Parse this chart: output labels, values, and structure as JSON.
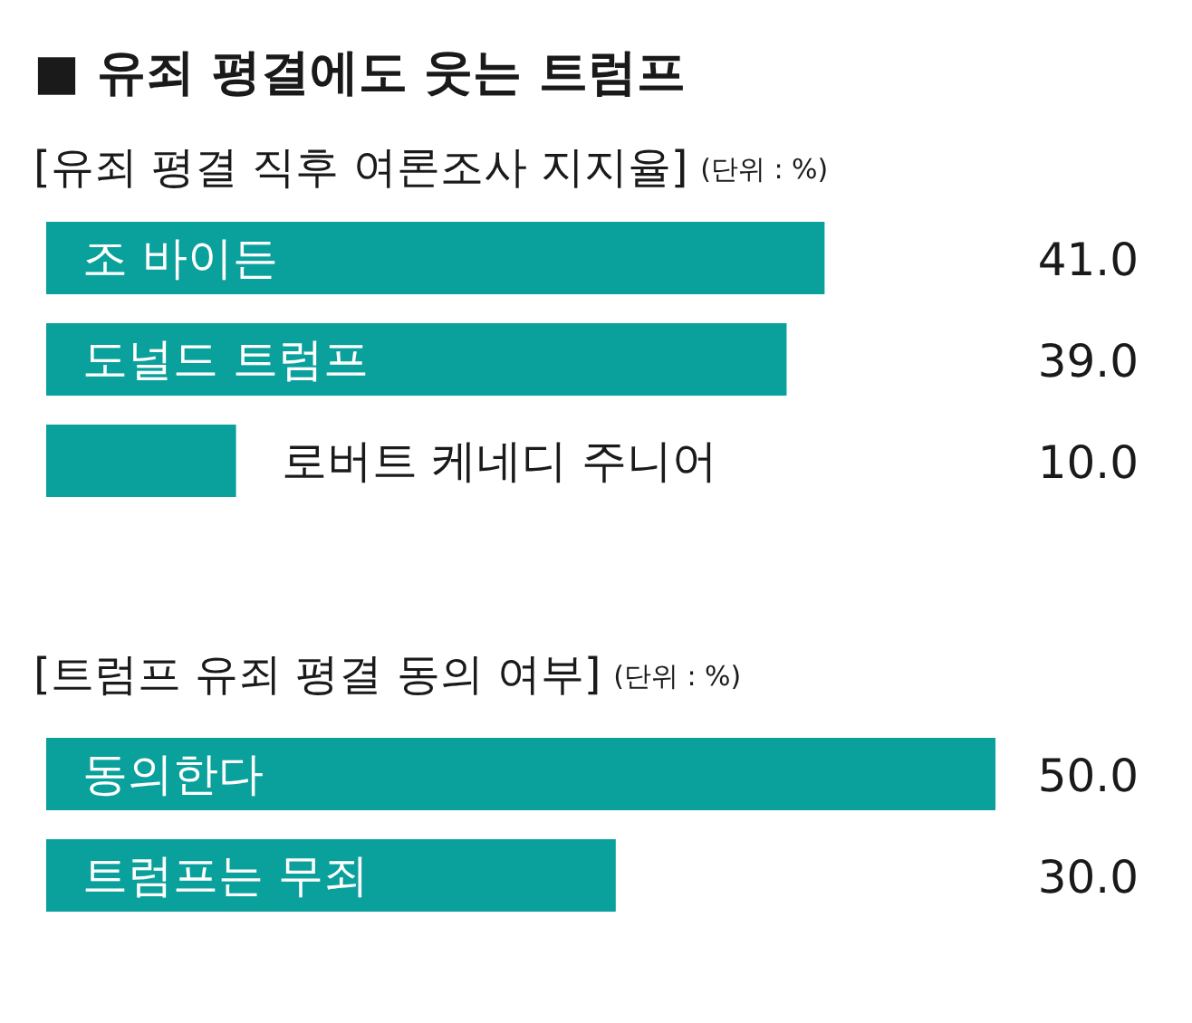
{
  "chart_data": [
    {
      "type": "bar",
      "orientation": "horizontal",
      "title": "■ 유죄 평결에도 웃는 트럼프",
      "subtitle": "[유죄 평결 직후 여론조사 지지율]",
      "annotations": [
        "(단위 : %)"
      ],
      "categories": [
        "조 바이든",
        "도널드 트럼프",
        "로버트 케네디 주니어"
      ],
      "values": [
        41.0,
        39.0,
        10.0
      ],
      "value_labels": [
        "41.0",
        "39.0",
        "10.0"
      ],
      "color": "#0aa09c",
      "tick_labels": "y"
    },
    {
      "type": "bar",
      "orientation": "horizontal",
      "title": "[트럼프 유죄 평결 동의 여부]",
      "annotations": [
        "(단위 : %)"
      ],
      "categories": [
        "동의한다",
        "트럼프는 무죄"
      ],
      "values": [
        50.0,
        30.0
      ],
      "value_labels": [
        "50.0",
        "30.0"
      ],
      "color": "#0aa09c",
      "tick_labels": "y"
    }
  ]
}
